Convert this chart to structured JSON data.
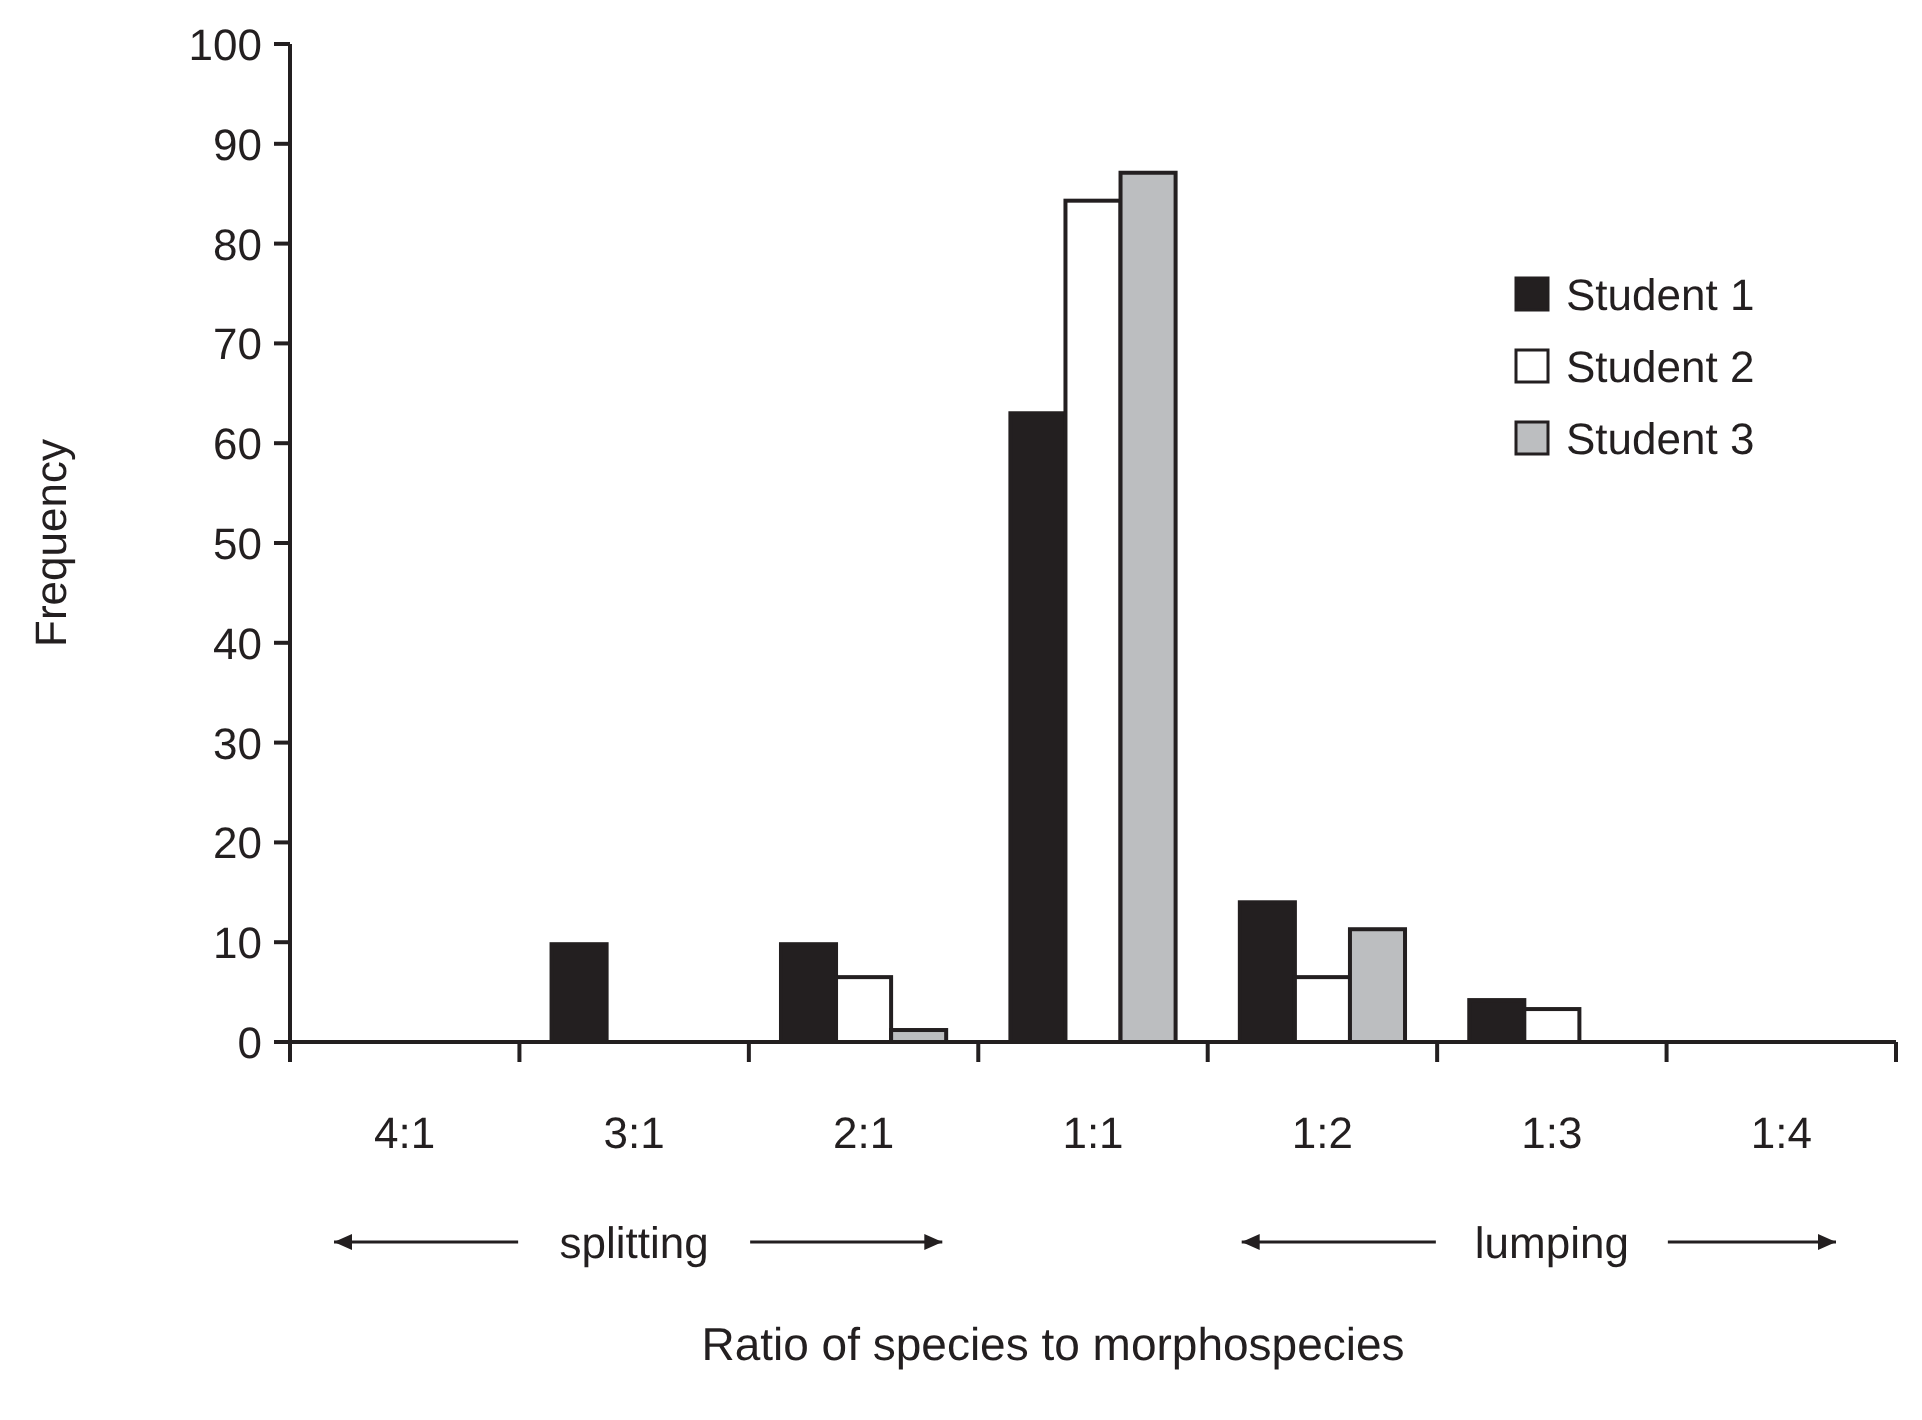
{
  "chart_data": {
    "type": "bar",
    "xlabel": "Ratio of species to morphospecies",
    "ylabel": "Frequency",
    "categories": [
      "4:1",
      "3:1",
      "2:1",
      "1:1",
      "1:2",
      "1:3",
      "1:4"
    ],
    "series": [
      {
        "name": "Student 1",
        "color": "#231f20",
        "values": [
          0,
          9.8,
          9.8,
          63,
          14,
          4.2,
          0
        ]
      },
      {
        "name": "Student 2",
        "color": "#ffffff",
        "values": [
          0,
          0,
          6.5,
          84.3,
          6.5,
          3.3,
          0
        ]
      },
      {
        "name": "Student 3",
        "color": "#bcbec0",
        "values": [
          0,
          0,
          1.2,
          87.1,
          11.3,
          0,
          0
        ]
      }
    ],
    "ylim": [
      0,
      100
    ],
    "yticks": [
      0,
      10,
      20,
      30,
      40,
      50,
      60,
      70,
      80,
      90,
      100
    ],
    "grid": false,
    "legend": "top right",
    "annotations": [
      "splitting",
      "lumping"
    ]
  }
}
